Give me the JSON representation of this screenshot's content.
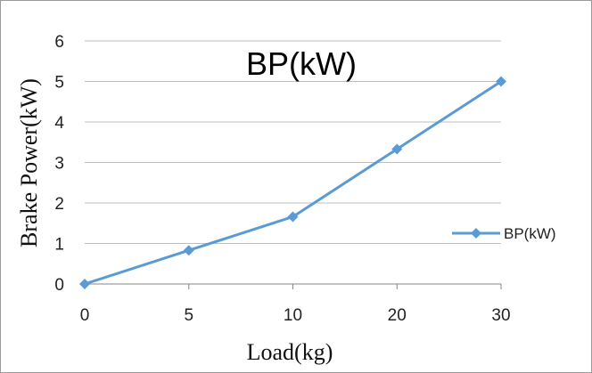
{
  "chart_data": {
    "type": "line",
    "title": "BP(kW)",
    "xlabel": "Load(kg)",
    "ylabel": "Brake Power(kW)",
    "categories": [
      "0",
      "5",
      "10",
      "20",
      "30"
    ],
    "series": [
      {
        "name": "BP(kW)",
        "values": [
          0,
          0.83,
          1.66,
          3.33,
          5.0
        ]
      }
    ],
    "ylim": [
      0,
      6
    ],
    "yticks": [
      "0",
      "1",
      "2",
      "3",
      "4",
      "5",
      "6"
    ],
    "grid": true,
    "legend_position": "right",
    "colors": {
      "series": "#5b9bd5",
      "grid": "#bfbfbf",
      "axis": "#868686"
    }
  }
}
